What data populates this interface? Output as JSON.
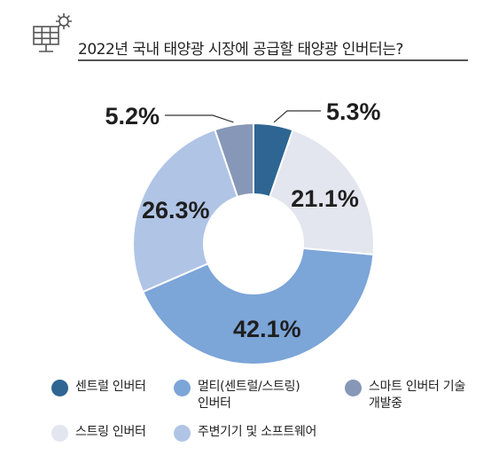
{
  "header": {
    "title": "2022년 국내 태양광 시장에 공급할 태양광 인버터는?",
    "icon": "solar-panel-gear-icon"
  },
  "chart_data": {
    "type": "pie",
    "donut": true,
    "categories": [
      "센트럴 인버터",
      "스트링 인버터",
      "멀티(센트럴/스트링) 인버터",
      "주변기기 및 소프트웨어",
      "스마트 인버터 기술 개발중"
    ],
    "values": [
      5.3,
      21.1,
      42.1,
      26.3,
      5.2
    ],
    "labels": [
      "5.3%",
      "21.1%",
      "42.1%",
      "26.3%",
      "5.2%"
    ],
    "colors": [
      "#2e6592",
      "#e3e5ef",
      "#7ca5d8",
      "#b0c4e6",
      "#8797b7"
    ],
    "legend_position": "bottom"
  },
  "legend": [
    {
      "label": "센트럴 인버터",
      "color": "#2e6592"
    },
    {
      "label": "멀티(센트럴/스트링)\n인버터",
      "color": "#7ca5d8"
    },
    {
      "label": "스마트 인버터 기술\n개발중",
      "color": "#8797b7"
    },
    {
      "label": "스트링 인버터",
      "color": "#e3e5ef"
    },
    {
      "label": "주변기기 및 소프트웨어",
      "color": "#b0c4e6"
    }
  ]
}
